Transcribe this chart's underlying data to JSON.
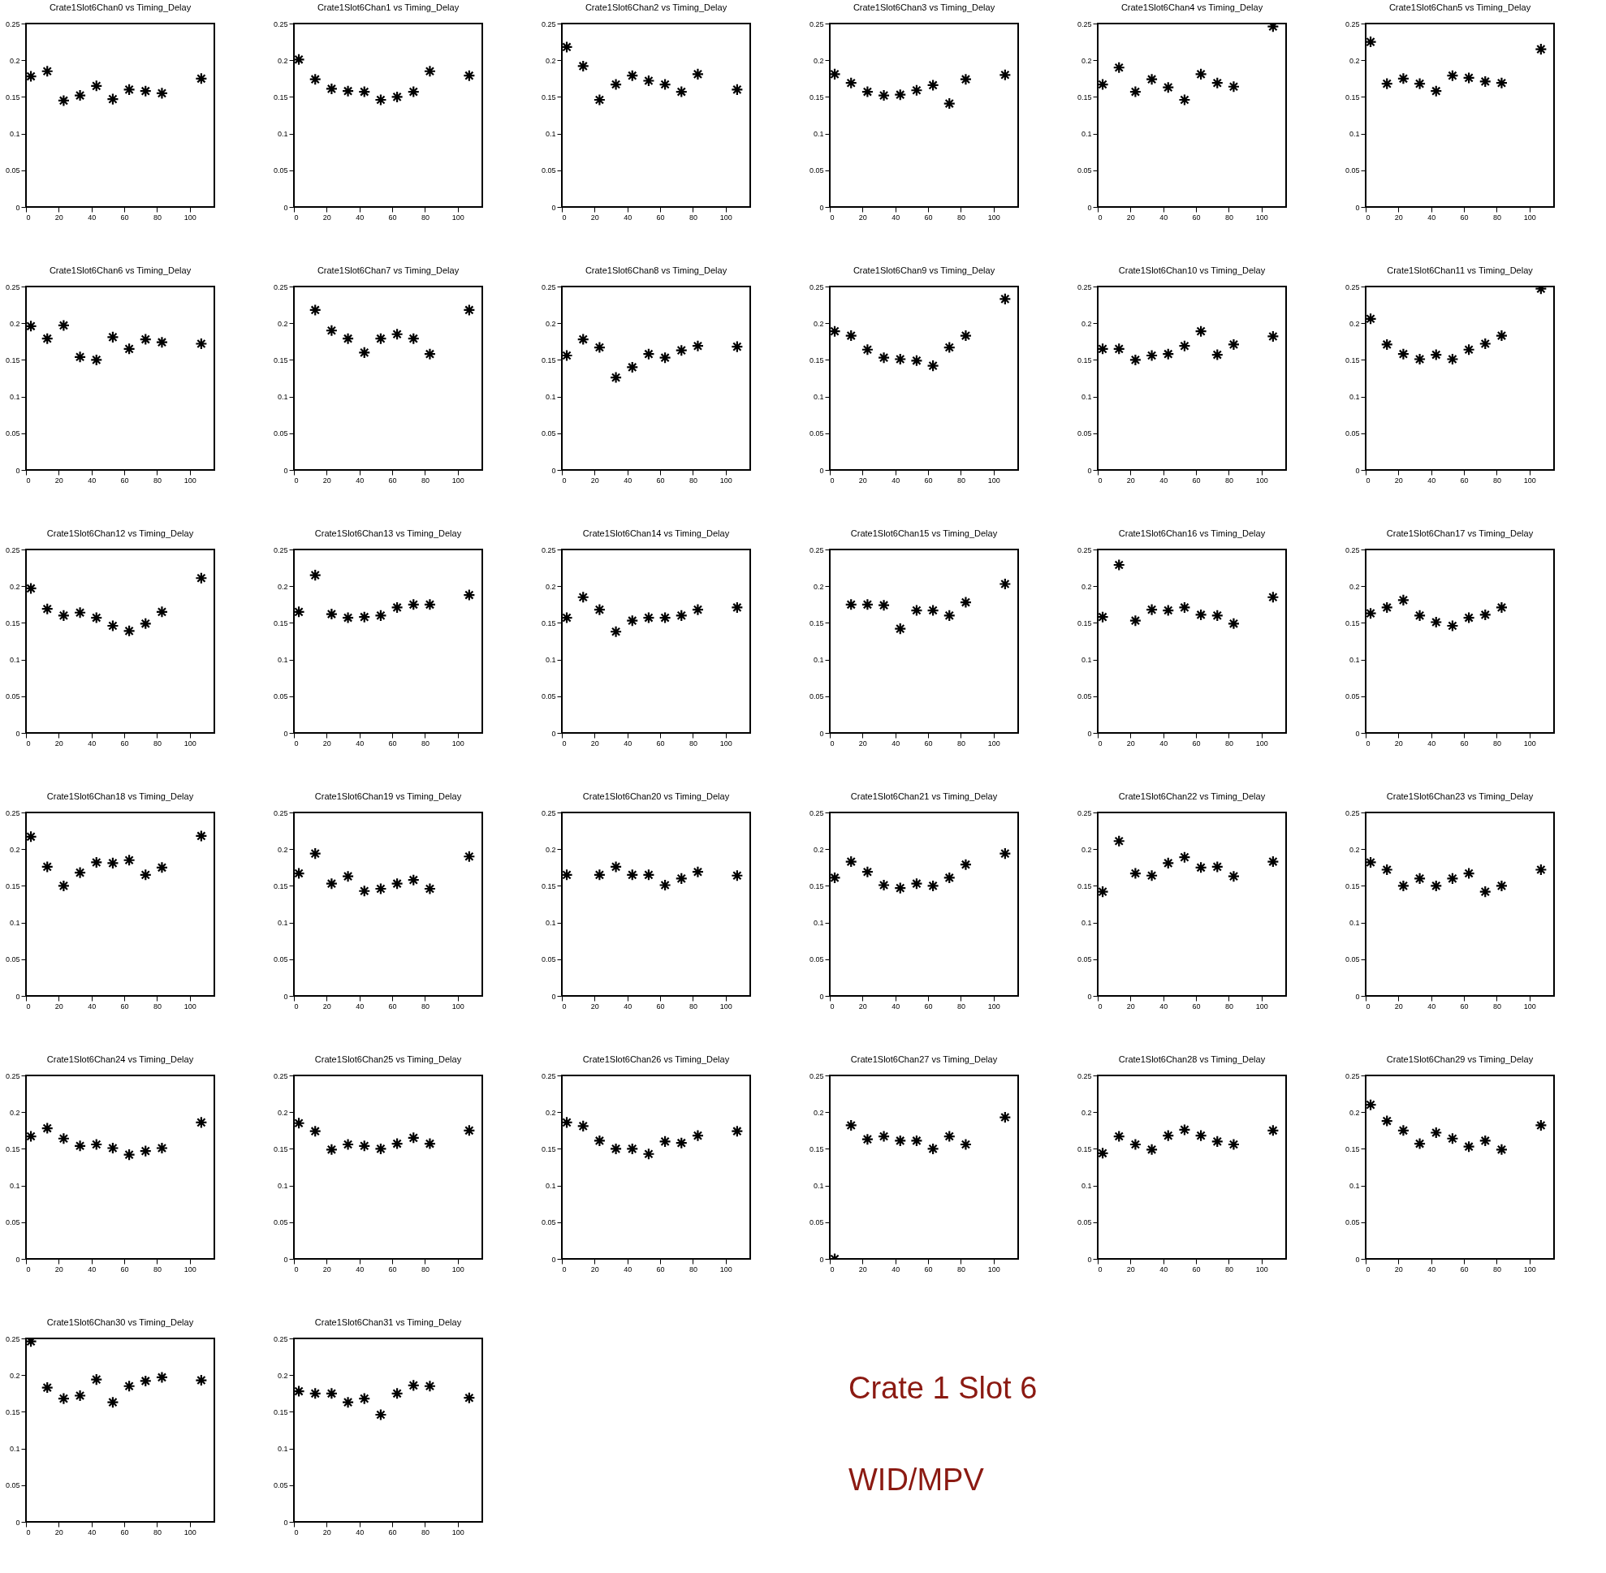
{
  "chart_data": [
    {
      "type": "scatter",
      "title": "Crate1Slot6Chan0 vs Timing_Delay",
      "x": [
        3,
        13,
        23,
        33,
        43,
        53,
        63,
        73,
        83,
        107
      ],
      "values": [
        0.178,
        0.185,
        0.145,
        0.152,
        0.165,
        0.147,
        0.16,
        0.158,
        0.155,
        0.175
      ],
      "color": "#000000",
      "marker": "cross",
      "xlim": [
        0,
        115
      ],
      "xticks": [
        0,
        20,
        40,
        60,
        80,
        100
      ],
      "ylim": [
        0,
        0.25
      ],
      "yticks": [
        0,
        0.05,
        0.1,
        0.15,
        0.2,
        0.25
      ]
    },
    {
      "type": "scatter",
      "title": "Crate1Slot6Chan1 vs Timing_Delay",
      "x": [
        3,
        13,
        23,
        33,
        43,
        53,
        63,
        73,
        83,
        107
      ],
      "values": [
        0.201,
        0.174,
        0.161,
        0.158,
        0.157,
        0.146,
        0.15,
        0.157,
        0.185,
        0.179
      ],
      "color": "#000000",
      "marker": "cross",
      "xlim": [
        0,
        115
      ],
      "xticks": [
        0,
        20,
        40,
        60,
        80,
        100
      ],
      "ylim": [
        0,
        0.25
      ],
      "yticks": [
        0,
        0.05,
        0.1,
        0.15,
        0.2,
        0.25
      ]
    },
    {
      "type": "scatter",
      "title": "Crate1Slot6Chan2 vs Timing_Delay",
      "x": [
        3,
        13,
        23,
        33,
        43,
        53,
        63,
        73,
        83,
        107
      ],
      "values": [
        0.218,
        0.192,
        0.146,
        0.167,
        0.179,
        0.172,
        0.167,
        0.157,
        0.181,
        0.16
      ],
      "color": "#000000",
      "marker": "cross",
      "xlim": [
        0,
        115
      ],
      "xticks": [
        0,
        20,
        40,
        60,
        80,
        100
      ],
      "ylim": [
        0,
        0.25
      ],
      "yticks": [
        0,
        0.05,
        0.1,
        0.15,
        0.2,
        0.25
      ]
    },
    {
      "type": "scatter",
      "title": "Crate1Slot6Chan3 vs Timing_Delay",
      "x": [
        3,
        13,
        23,
        33,
        43,
        53,
        63,
        73,
        83,
        107
      ],
      "values": [
        0.181,
        0.169,
        0.157,
        0.152,
        0.153,
        0.159,
        0.166,
        0.141,
        0.174,
        0.18
      ],
      "color": "#000000",
      "marker": "cross",
      "xlim": [
        0,
        115
      ],
      "xticks": [
        0,
        20,
        40,
        60,
        80,
        100
      ],
      "ylim": [
        0,
        0.25
      ],
      "yticks": [
        0,
        0.05,
        0.1,
        0.15,
        0.2,
        0.25
      ]
    },
    {
      "type": "scatter",
      "title": "Crate1Slot6Chan4 vs Timing_Delay",
      "x": [
        3,
        13,
        23,
        33,
        43,
        53,
        63,
        73,
        83,
        107
      ],
      "values": [
        0.167,
        0.19,
        0.157,
        0.174,
        0.163,
        0.146,
        0.181,
        0.169,
        0.164,
        0.246
      ],
      "color": "#000000",
      "marker": "cross",
      "xlim": [
        0,
        115
      ],
      "xticks": [
        0,
        20,
        40,
        60,
        80,
        100
      ],
      "ylim": [
        0,
        0.25
      ],
      "yticks": [
        0,
        0.05,
        0.1,
        0.15,
        0.2,
        0.25
      ]
    },
    {
      "type": "scatter",
      "title": "Crate1Slot6Chan5 vs Timing_Delay",
      "x": [
        3,
        13,
        23,
        33,
        43,
        53,
        63,
        73,
        83,
        107
      ],
      "values": [
        0.225,
        0.168,
        0.175,
        0.168,
        0.158,
        0.179,
        0.176,
        0.171,
        0.169,
        0.215
      ],
      "color": "#000000",
      "marker": "cross",
      "xlim": [
        0,
        115
      ],
      "xticks": [
        0,
        20,
        40,
        60,
        80,
        100
      ],
      "ylim": [
        0,
        0.25
      ],
      "yticks": [
        0,
        0.05,
        0.1,
        0.15,
        0.2,
        0.25
      ]
    },
    {
      "type": "scatter",
      "title": "Crate1Slot6Chan6 vs Timing_Delay",
      "x": [
        3,
        13,
        23,
        33,
        43,
        53,
        63,
        73,
        83,
        107
      ],
      "values": [
        0.196,
        0.179,
        0.197,
        0.154,
        0.15,
        0.181,
        0.165,
        0.178,
        0.174,
        0.172
      ],
      "color": "#000000",
      "marker": "cross",
      "xlim": [
        0,
        115
      ],
      "xticks": [
        0,
        20,
        40,
        60,
        80,
        100
      ],
      "ylim": [
        0,
        0.25
      ],
      "yticks": [
        0,
        0.05,
        0.1,
        0.15,
        0.2,
        0.25
      ]
    },
    {
      "type": "scatter",
      "title": "Crate1Slot6Chan7 vs Timing_Delay",
      "x": [
        13,
        23,
        33,
        43,
        53,
        63,
        73,
        83,
        107
      ],
      "values": [
        0.218,
        0.19,
        0.179,
        0.16,
        0.179,
        0.185,
        0.179,
        0.158,
        0.218
      ],
      "color": "#000000",
      "marker": "cross",
      "xlim": [
        0,
        115
      ],
      "xticks": [
        0,
        20,
        40,
        60,
        80,
        100
      ],
      "ylim": [
        0,
        0.25
      ],
      "yticks": [
        0,
        0.05,
        0.1,
        0.15,
        0.2,
        0.25
      ]
    },
    {
      "type": "scatter",
      "title": "Crate1Slot6Chan8 vs Timing_Delay",
      "x": [
        3,
        13,
        23,
        33,
        43,
        53,
        63,
        73,
        83,
        107
      ],
      "values": [
        0.156,
        0.178,
        0.167,
        0.126,
        0.14,
        0.158,
        0.153,
        0.163,
        0.169,
        0.168
      ],
      "color": "#000000",
      "marker": "cross",
      "xlim": [
        0,
        115
      ],
      "xticks": [
        0,
        20,
        40,
        60,
        80,
        100
      ],
      "ylim": [
        0,
        0.25
      ],
      "yticks": [
        0,
        0.05,
        0.1,
        0.15,
        0.2,
        0.25
      ]
    },
    {
      "type": "scatter",
      "title": "Crate1Slot6Chan9 vs Timing_Delay",
      "x": [
        3,
        13,
        23,
        33,
        43,
        53,
        63,
        73,
        83,
        107
      ],
      "values": [
        0.189,
        0.183,
        0.164,
        0.153,
        0.151,
        0.149,
        0.142,
        0.167,
        0.183,
        0.233
      ],
      "color": "#000000",
      "marker": "cross",
      "xlim": [
        0,
        115
      ],
      "xticks": [
        0,
        20,
        40,
        60,
        80,
        100
      ],
      "ylim": [
        0,
        0.25
      ],
      "yticks": [
        0,
        0.05,
        0.1,
        0.15,
        0.2,
        0.25
      ]
    },
    {
      "type": "scatter",
      "title": "Crate1Slot6Chan10 vs Timing_Delay",
      "x": [
        3,
        13,
        23,
        33,
        43,
        53,
        63,
        73,
        83,
        107
      ],
      "values": [
        0.165,
        0.165,
        0.15,
        0.156,
        0.158,
        0.169,
        0.189,
        0.157,
        0.171,
        0.182
      ],
      "color": "#000000",
      "marker": "cross",
      "xlim": [
        0,
        115
      ],
      "xticks": [
        0,
        20,
        40,
        60,
        80,
        100
      ],
      "ylim": [
        0,
        0.25
      ],
      "yticks": [
        0,
        0.05,
        0.1,
        0.15,
        0.2,
        0.25
      ]
    },
    {
      "type": "scatter",
      "title": "Crate1Slot6Chan11 vs Timing_Delay",
      "x": [
        3,
        13,
        23,
        33,
        43,
        53,
        63,
        73,
        83,
        107
      ],
      "values": [
        0.206,
        0.171,
        0.158,
        0.151,
        0.157,
        0.151,
        0.164,
        0.172,
        0.183,
        0.247
      ],
      "color": "#000000",
      "marker": "cross",
      "xlim": [
        0,
        115
      ],
      "xticks": [
        0,
        20,
        40,
        60,
        80,
        100
      ],
      "ylim": [
        0,
        0.25
      ],
      "yticks": [
        0,
        0.05,
        0.1,
        0.15,
        0.2,
        0.25
      ]
    },
    {
      "type": "scatter",
      "title": "Crate1Slot6Chan12 vs Timing_Delay",
      "x": [
        3,
        13,
        23,
        33,
        43,
        53,
        63,
        73,
        83,
        107
      ],
      "values": [
        0.197,
        0.169,
        0.16,
        0.164,
        0.157,
        0.146,
        0.139,
        0.149,
        0.165,
        0.211
      ],
      "color": "#000000",
      "marker": "cross",
      "xlim": [
        0,
        115
      ],
      "xticks": [
        0,
        20,
        40,
        60,
        80,
        100
      ],
      "ylim": [
        0,
        0.25
      ],
      "yticks": [
        0,
        0.05,
        0.1,
        0.15,
        0.2,
        0.25
      ]
    },
    {
      "type": "scatter",
      "title": "Crate1Slot6Chan13 vs Timing_Delay",
      "x": [
        3,
        13,
        23,
        33,
        43,
        53,
        63,
        73,
        83,
        107
      ],
      "values": [
        0.165,
        0.215,
        0.162,
        0.157,
        0.158,
        0.16,
        0.171,
        0.175,
        0.175,
        0.188
      ],
      "color": "#000000",
      "marker": "cross",
      "xlim": [
        0,
        115
      ],
      "xticks": [
        0,
        20,
        40,
        60,
        80,
        100
      ],
      "ylim": [
        0,
        0.25
      ],
      "yticks": [
        0,
        0.05,
        0.1,
        0.15,
        0.2,
        0.25
      ]
    },
    {
      "type": "scatter",
      "title": "Crate1Slot6Chan14 vs Timing_Delay",
      "x": [
        3,
        13,
        23,
        33,
        43,
        53,
        63,
        73,
        83,
        107
      ],
      "values": [
        0.157,
        0.185,
        0.168,
        0.138,
        0.153,
        0.157,
        0.157,
        0.16,
        0.168,
        0.171
      ],
      "color": "#000000",
      "marker": "cross",
      "xlim": [
        0,
        115
      ],
      "xticks": [
        0,
        20,
        40,
        60,
        80,
        100
      ],
      "ylim": [
        0,
        0.25
      ],
      "yticks": [
        0,
        0.05,
        0.1,
        0.15,
        0.2,
        0.25
      ]
    },
    {
      "type": "scatter",
      "title": "Crate1Slot6Chan15 vs Timing_Delay",
      "x": [
        13,
        23,
        33,
        43,
        53,
        63,
        73,
        83,
        107
      ],
      "values": [
        0.175,
        0.175,
        0.174,
        0.142,
        0.167,
        0.167,
        0.16,
        0.178,
        0.203
      ],
      "color": "#000000",
      "marker": "cross",
      "xlim": [
        0,
        115
      ],
      "xticks": [
        0,
        20,
        40,
        60,
        80,
        100
      ],
      "ylim": [
        0,
        0.25
      ],
      "yticks": [
        0,
        0.05,
        0.1,
        0.15,
        0.2,
        0.25
      ]
    },
    {
      "type": "scatter",
      "title": "Crate1Slot6Chan16 vs Timing_Delay",
      "x": [
        3,
        13,
        23,
        33,
        43,
        53,
        63,
        73,
        83,
        107
      ],
      "values": [
        0.158,
        0.229,
        0.153,
        0.168,
        0.167,
        0.171,
        0.161,
        0.16,
        0.149,
        0.185
      ],
      "color": "#000000",
      "marker": "cross",
      "xlim": [
        0,
        115
      ],
      "xticks": [
        0,
        20,
        40,
        60,
        80,
        100
      ],
      "ylim": [
        0,
        0.25
      ],
      "yticks": [
        0,
        0.05,
        0.1,
        0.15,
        0.2,
        0.25
      ]
    },
    {
      "type": "scatter",
      "title": "Crate1Slot6Chan17 vs Timing_Delay",
      "x": [
        3,
        13,
        23,
        33,
        43,
        53,
        63,
        73,
        83
      ],
      "values": [
        0.163,
        0.171,
        0.181,
        0.16,
        0.151,
        0.146,
        0.157,
        0.161,
        0.171
      ],
      "color": "#000000",
      "marker": "cross",
      "xlim": [
        0,
        115
      ],
      "xticks": [
        0,
        20,
        40,
        60,
        80,
        100
      ],
      "ylim": [
        0,
        0.25
      ],
      "yticks": [
        0,
        0.05,
        0.1,
        0.15,
        0.2,
        0.25
      ]
    },
    {
      "type": "scatter",
      "title": "Crate1Slot6Chan18 vs Timing_Delay",
      "x": [
        3,
        13,
        23,
        33,
        43,
        53,
        63,
        73,
        83,
        107
      ],
      "values": [
        0.217,
        0.176,
        0.15,
        0.168,
        0.182,
        0.181,
        0.185,
        0.165,
        0.175,
        0.218
      ],
      "color": "#000000",
      "marker": "cross",
      "xlim": [
        0,
        115
      ],
      "xticks": [
        0,
        20,
        40,
        60,
        80,
        100
      ],
      "ylim": [
        0,
        0.25
      ],
      "yticks": [
        0,
        0.05,
        0.1,
        0.15,
        0.2,
        0.25
      ]
    },
    {
      "type": "scatter",
      "title": "Crate1Slot6Chan19 vs Timing_Delay",
      "x": [
        3,
        13,
        23,
        33,
        43,
        53,
        63,
        73,
        83,
        107
      ],
      "values": [
        0.167,
        0.194,
        0.153,
        0.163,
        0.143,
        0.146,
        0.153,
        0.158,
        0.146,
        0.19
      ],
      "color": "#000000",
      "marker": "cross",
      "xlim": [
        0,
        115
      ],
      "xticks": [
        0,
        20,
        40,
        60,
        80,
        100
      ],
      "ylim": [
        0,
        0.25
      ],
      "yticks": [
        0,
        0.05,
        0.1,
        0.15,
        0.2,
        0.25
      ]
    },
    {
      "type": "scatter",
      "title": "Crate1Slot6Chan20 vs Timing_Delay",
      "x": [
        3,
        23,
        33,
        43,
        53,
        63,
        73,
        83,
        107
      ],
      "values": [
        0.165,
        0.165,
        0.176,
        0.165,
        0.165,
        0.151,
        0.16,
        0.169,
        0.164
      ],
      "color": "#000000",
      "marker": "cross",
      "xlim": [
        0,
        115
      ],
      "xticks": [
        0,
        20,
        40,
        60,
        80,
        100
      ],
      "ylim": [
        0,
        0.25
      ],
      "yticks": [
        0,
        0.05,
        0.1,
        0.15,
        0.2,
        0.25
      ]
    },
    {
      "type": "scatter",
      "title": "Crate1Slot6Chan21 vs Timing_Delay",
      "x": [
        3,
        13,
        23,
        33,
        43,
        53,
        63,
        73,
        83,
        107
      ],
      "values": [
        0.161,
        0.183,
        0.169,
        0.151,
        0.147,
        0.153,
        0.15,
        0.161,
        0.179,
        0.194
      ],
      "color": "#000000",
      "marker": "cross",
      "xlim": [
        0,
        115
      ],
      "xticks": [
        0,
        20,
        40,
        60,
        80,
        100
      ],
      "ylim": [
        0,
        0.25
      ],
      "yticks": [
        0,
        0.05,
        0.1,
        0.15,
        0.2,
        0.25
      ]
    },
    {
      "type": "scatter",
      "title": "Crate1Slot6Chan22 vs Timing_Delay",
      "x": [
        3,
        13,
        23,
        33,
        43,
        53,
        63,
        73,
        83,
        107
      ],
      "values": [
        0.142,
        0.211,
        0.167,
        0.164,
        0.181,
        0.189,
        0.175,
        0.176,
        0.163,
        0.183
      ],
      "color": "#000000",
      "marker": "cross",
      "xlim": [
        0,
        115
      ],
      "xticks": [
        0,
        20,
        40,
        60,
        80,
        100
      ],
      "ylim": [
        0,
        0.25
      ],
      "yticks": [
        0,
        0.05,
        0.1,
        0.15,
        0.2,
        0.25
      ]
    },
    {
      "type": "scatter",
      "title": "Crate1Slot6Chan23 vs Timing_Delay",
      "x": [
        3,
        13,
        23,
        33,
        43,
        53,
        63,
        73,
        83,
        107
      ],
      "values": [
        0.182,
        0.172,
        0.15,
        0.16,
        0.15,
        0.16,
        0.167,
        0.142,
        0.15,
        0.172
      ],
      "color": "#000000",
      "marker": "cross",
      "xlim": [
        0,
        115
      ],
      "xticks": [
        0,
        20,
        40,
        60,
        80,
        100
      ],
      "ylim": [
        0,
        0.25
      ],
      "yticks": [
        0,
        0.05,
        0.1,
        0.15,
        0.2,
        0.25
      ]
    },
    {
      "type": "scatter",
      "title": "Crate1Slot6Chan24 vs Timing_Delay",
      "x": [
        3,
        13,
        23,
        33,
        43,
        53,
        63,
        73,
        83,
        107
      ],
      "values": [
        0.167,
        0.178,
        0.164,
        0.154,
        0.156,
        0.151,
        0.142,
        0.147,
        0.151,
        0.186
      ],
      "color": "#000000",
      "marker": "cross",
      "xlim": [
        0,
        115
      ],
      "xticks": [
        0,
        20,
        40,
        60,
        80,
        100
      ],
      "ylim": [
        0,
        0.25
      ],
      "yticks": [
        0,
        0.05,
        0.1,
        0.15,
        0.2,
        0.25
      ]
    },
    {
      "type": "scatter",
      "title": "Crate1Slot6Chan25 vs Timing_Delay",
      "x": [
        3,
        13,
        23,
        33,
        43,
        53,
        63,
        73,
        83,
        107
      ],
      "values": [
        0.185,
        0.174,
        0.149,
        0.156,
        0.154,
        0.15,
        0.157,
        0.165,
        0.157,
        0.175
      ],
      "color": "#000000",
      "marker": "cross",
      "xlim": [
        0,
        115
      ],
      "xticks": [
        0,
        20,
        40,
        60,
        80,
        100
      ],
      "ylim": [
        0,
        0.25
      ],
      "yticks": [
        0,
        0.05,
        0.1,
        0.15,
        0.2,
        0.25
      ]
    },
    {
      "type": "scatter",
      "title": "Crate1Slot6Chan26 vs Timing_Delay",
      "x": [
        3,
        13,
        23,
        33,
        43,
        53,
        63,
        73,
        83,
        107
      ],
      "values": [
        0.186,
        0.181,
        0.161,
        0.15,
        0.15,
        0.143,
        0.16,
        0.158,
        0.168,
        0.174
      ],
      "color": "#000000",
      "marker": "cross",
      "xlim": [
        0,
        115
      ],
      "xticks": [
        0,
        20,
        40,
        60,
        80,
        100
      ],
      "ylim": [
        0,
        0.25
      ],
      "yticks": [
        0,
        0.05,
        0.1,
        0.15,
        0.2,
        0.25
      ]
    },
    {
      "type": "scatter",
      "title": "Crate1Slot6Chan27 vs Timing_Delay",
      "x": [
        3,
        13,
        23,
        33,
        43,
        53,
        63,
        73,
        83,
        107
      ],
      "values": [
        0,
        0.182,
        0.163,
        0.167,
        0.161,
        0.161,
        0.15,
        0.167,
        0.156,
        0.193
      ],
      "color": "#000000",
      "marker": "cross",
      "xlim": [
        0,
        115
      ],
      "xticks": [
        0,
        20,
        40,
        60,
        80,
        100
      ],
      "ylim": [
        0,
        0.25
      ],
      "yticks": [
        0,
        0.05,
        0.1,
        0.15,
        0.2,
        0.25
      ]
    },
    {
      "type": "scatter",
      "title": "Crate1Slot6Chan28 vs Timing_Delay",
      "x": [
        3,
        13,
        23,
        33,
        43,
        53,
        63,
        73,
        83,
        107
      ],
      "values": [
        0.144,
        0.167,
        0.156,
        0.149,
        0.168,
        0.176,
        0.168,
        0.16,
        0.156,
        0.175
      ],
      "color": "#000000",
      "marker": "cross",
      "xlim": [
        0,
        115
      ],
      "xticks": [
        0,
        20,
        40,
        60,
        80,
        100
      ],
      "ylim": [
        0,
        0.25
      ],
      "yticks": [
        0,
        0.05,
        0.1,
        0.15,
        0.2,
        0.25
      ]
    },
    {
      "type": "scatter",
      "title": "Crate1Slot6Chan29 vs Timing_Delay",
      "x": [
        3,
        13,
        23,
        33,
        43,
        53,
        63,
        73,
        83,
        107
      ],
      "values": [
        0.21,
        0.188,
        0.175,
        0.157,
        0.172,
        0.164,
        0.153,
        0.161,
        0.149,
        0.182
      ],
      "color": "#000000",
      "marker": "cross",
      "xlim": [
        0,
        115
      ],
      "xticks": [
        0,
        20,
        40,
        60,
        80,
        100
      ],
      "ylim": [
        0,
        0.25
      ],
      "yticks": [
        0,
        0.05,
        0.1,
        0.15,
        0.2,
        0.25
      ]
    },
    {
      "type": "scatter",
      "title": "Crate1Slot6Chan30 vs Timing_Delay",
      "x": [
        3,
        13,
        23,
        33,
        43,
        53,
        63,
        73,
        83,
        107
      ],
      "values": [
        0.246,
        0.183,
        0.168,
        0.172,
        0.194,
        0.163,
        0.185,
        0.192,
        0.197,
        0.193
      ],
      "color": "#000000",
      "marker": "cross",
      "xlim": [
        0,
        115
      ],
      "xticks": [
        0,
        20,
        40,
        60,
        80,
        100
      ],
      "ylim": [
        0,
        0.25
      ],
      "yticks": [
        0,
        0.05,
        0.1,
        0.15,
        0.2,
        0.25
      ]
    },
    {
      "type": "scatter",
      "title": "Crate1Slot6Chan31 vs Timing_Delay",
      "x": [
        3,
        13,
        23,
        33,
        43,
        53,
        63,
        73,
        83,
        107
      ],
      "values": [
        0.178,
        0.175,
        0.175,
        0.163,
        0.168,
        0.146,
        0.175,
        0.186,
        0.185,
        0.169
      ],
      "color": "#000000",
      "marker": "cross",
      "xlim": [
        0,
        115
      ],
      "xticks": [
        0,
        20,
        40,
        60,
        80,
        100
      ],
      "ylim": [
        0,
        0.25
      ],
      "yticks": [
        0,
        0.05,
        0.1,
        0.15,
        0.2,
        0.25
      ]
    },
    {
      "type": "other",
      "annotations": [
        "Crate 1 Slot 6",
        "WID/MPV"
      ]
    }
  ]
}
